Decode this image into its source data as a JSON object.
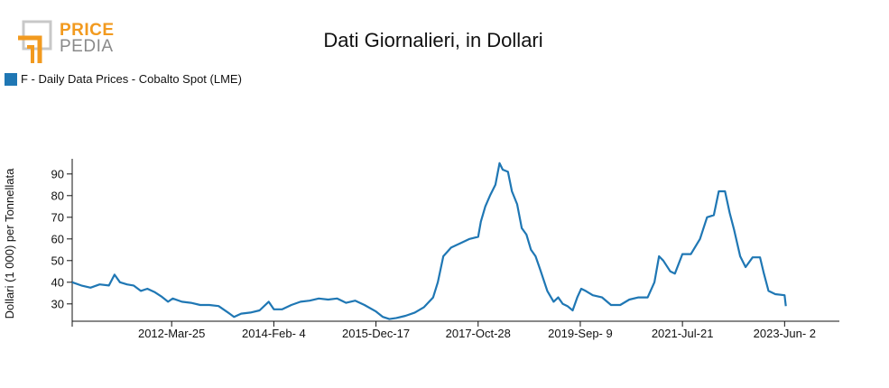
{
  "brand": {
    "line1": "PRICE",
    "line2": "PEDIA",
    "color_primary": "#f29a1f",
    "color_secondary": "#8a8a8a"
  },
  "chart_data": {
    "type": "line",
    "title": "Dati Giornalieri, in Dollari",
    "ylabel": "Dollari (1 000) per Tonnellata",
    "xlabel": "",
    "ylim": [
      22,
      97
    ],
    "yticks": [
      30,
      40,
      50,
      60,
      70,
      80,
      90
    ],
    "xlim": [
      "2010-06-01",
      "2024-06-01"
    ],
    "xticks": [
      {
        "date": "2012-03-25",
        "label": "2012-Mar-25"
      },
      {
        "date": "2014-02-04",
        "label": "2014-Feb- 4"
      },
      {
        "date": "2015-12-17",
        "label": "2015-Dec-17"
      },
      {
        "date": "2017-10-28",
        "label": "2017-Oct-28"
      },
      {
        "date": "2019-09-09",
        "label": "2019-Sep- 9"
      },
      {
        "date": "2021-07-21",
        "label": "2021-Jul-21"
      },
      {
        "date": "2023-06-02",
        "label": "2023-Jun- 2"
      }
    ],
    "legend_position": "top-left",
    "grid": false,
    "series": [
      {
        "name": "F - Daily Data Prices - Cobalto Spot (LME)",
        "color": "#1f77b4",
        "points": [
          [
            "2010-06-01",
            40
          ],
          [
            "2010-08-01",
            38.5
          ],
          [
            "2010-10-01",
            37.5
          ],
          [
            "2010-12-01",
            39
          ],
          [
            "2011-02-01",
            38.5
          ],
          [
            "2011-03-10",
            43.5
          ],
          [
            "2011-04-15",
            40
          ],
          [
            "2011-06-01",
            39
          ],
          [
            "2011-07-15",
            38.5
          ],
          [
            "2011-09-01",
            36
          ],
          [
            "2011-10-15",
            37
          ],
          [
            "2011-12-01",
            35.5
          ],
          [
            "2012-01-15",
            33.5
          ],
          [
            "2012-03-01",
            31
          ],
          [
            "2012-04-01",
            32.5
          ],
          [
            "2012-06-01",
            31
          ],
          [
            "2012-08-01",
            30.5
          ],
          [
            "2012-10-01",
            29.5
          ],
          [
            "2012-12-01",
            29.5
          ],
          [
            "2013-02-01",
            29
          ],
          [
            "2013-04-15",
            25.5
          ],
          [
            "2013-05-15",
            24
          ],
          [
            "2013-07-01",
            25.5
          ],
          [
            "2013-09-01",
            26
          ],
          [
            "2013-11-01",
            27
          ],
          [
            "2014-01-01",
            31
          ],
          [
            "2014-02-04",
            27.5
          ],
          [
            "2014-04-01",
            27.5
          ],
          [
            "2014-06-01",
            29.5
          ],
          [
            "2014-08-01",
            31
          ],
          [
            "2014-10-01",
            31.5
          ],
          [
            "2014-12-01",
            32.5
          ],
          [
            "2015-02-01",
            32
          ],
          [
            "2015-04-01",
            32.5
          ],
          [
            "2015-06-01",
            30.5
          ],
          [
            "2015-08-01",
            31.5
          ],
          [
            "2015-10-01",
            29.5
          ],
          [
            "2015-12-17",
            26.5
          ],
          [
            "2016-02-01",
            24
          ],
          [
            "2016-03-15",
            23
          ],
          [
            "2016-05-01",
            23.5
          ],
          [
            "2016-07-01",
            24.5
          ],
          [
            "2016-09-01",
            26
          ],
          [
            "2016-11-01",
            28.5
          ],
          [
            "2017-01-01",
            33
          ],
          [
            "2017-02-01",
            40
          ],
          [
            "2017-03-10",
            52
          ],
          [
            "2017-05-01",
            56
          ],
          [
            "2017-07-01",
            58
          ],
          [
            "2017-09-01",
            60
          ],
          [
            "2017-10-28",
            61
          ],
          [
            "2017-11-15",
            68
          ],
          [
            "2017-12-15",
            75
          ],
          [
            "2018-01-15",
            80
          ],
          [
            "2018-02-20",
            85
          ],
          [
            "2018-03-20",
            95
          ],
          [
            "2018-04-10",
            92
          ],
          [
            "2018-05-15",
            91
          ],
          [
            "2018-06-10",
            82
          ],
          [
            "2018-07-15",
            76
          ],
          [
            "2018-08-15",
            65
          ],
          [
            "2018-09-15",
            62
          ],
          [
            "2018-10-15",
            55
          ],
          [
            "2018-11-15",
            52
          ],
          [
            "2018-12-15",
            46
          ],
          [
            "2019-02-01",
            36
          ],
          [
            "2019-03-15",
            31
          ],
          [
            "2019-04-15",
            33
          ],
          [
            "2019-05-15",
            30
          ],
          [
            "2019-06-15",
            29
          ],
          [
            "2019-07-20",
            27
          ],
          [
            "2019-08-20",
            33
          ],
          [
            "2019-09-15",
            37
          ],
          [
            "2019-10-15",
            36
          ],
          [
            "2019-12-01",
            34
          ],
          [
            "2020-02-01",
            33
          ],
          [
            "2020-04-01",
            29.5
          ],
          [
            "2020-06-01",
            29.5
          ],
          [
            "2020-08-01",
            32
          ],
          [
            "2020-10-01",
            33
          ],
          [
            "2020-12-01",
            33
          ],
          [
            "2021-01-15",
            40
          ],
          [
            "2021-02-15",
            52
          ],
          [
            "2021-03-15",
            50
          ],
          [
            "2021-05-01",
            45
          ],
          [
            "2021-06-01",
            44
          ],
          [
            "2021-07-21",
            53
          ],
          [
            "2021-09-15",
            53
          ],
          [
            "2021-11-15",
            60
          ],
          [
            "2022-01-01",
            70
          ],
          [
            "2022-02-15",
            71
          ],
          [
            "2022-03-20",
            82
          ],
          [
            "2022-05-01",
            82
          ],
          [
            "2022-06-01",
            72
          ],
          [
            "2022-07-01",
            64
          ],
          [
            "2022-08-10",
            52
          ],
          [
            "2022-09-15",
            47
          ],
          [
            "2022-11-01",
            51.5
          ],
          [
            "2022-12-20",
            51.5
          ],
          [
            "2023-01-15",
            44
          ],
          [
            "2023-02-15",
            36
          ],
          [
            "2023-04-01",
            34.5
          ],
          [
            "2023-06-02",
            34
          ],
          [
            "2023-06-10",
            29
          ]
        ]
      }
    ]
  }
}
